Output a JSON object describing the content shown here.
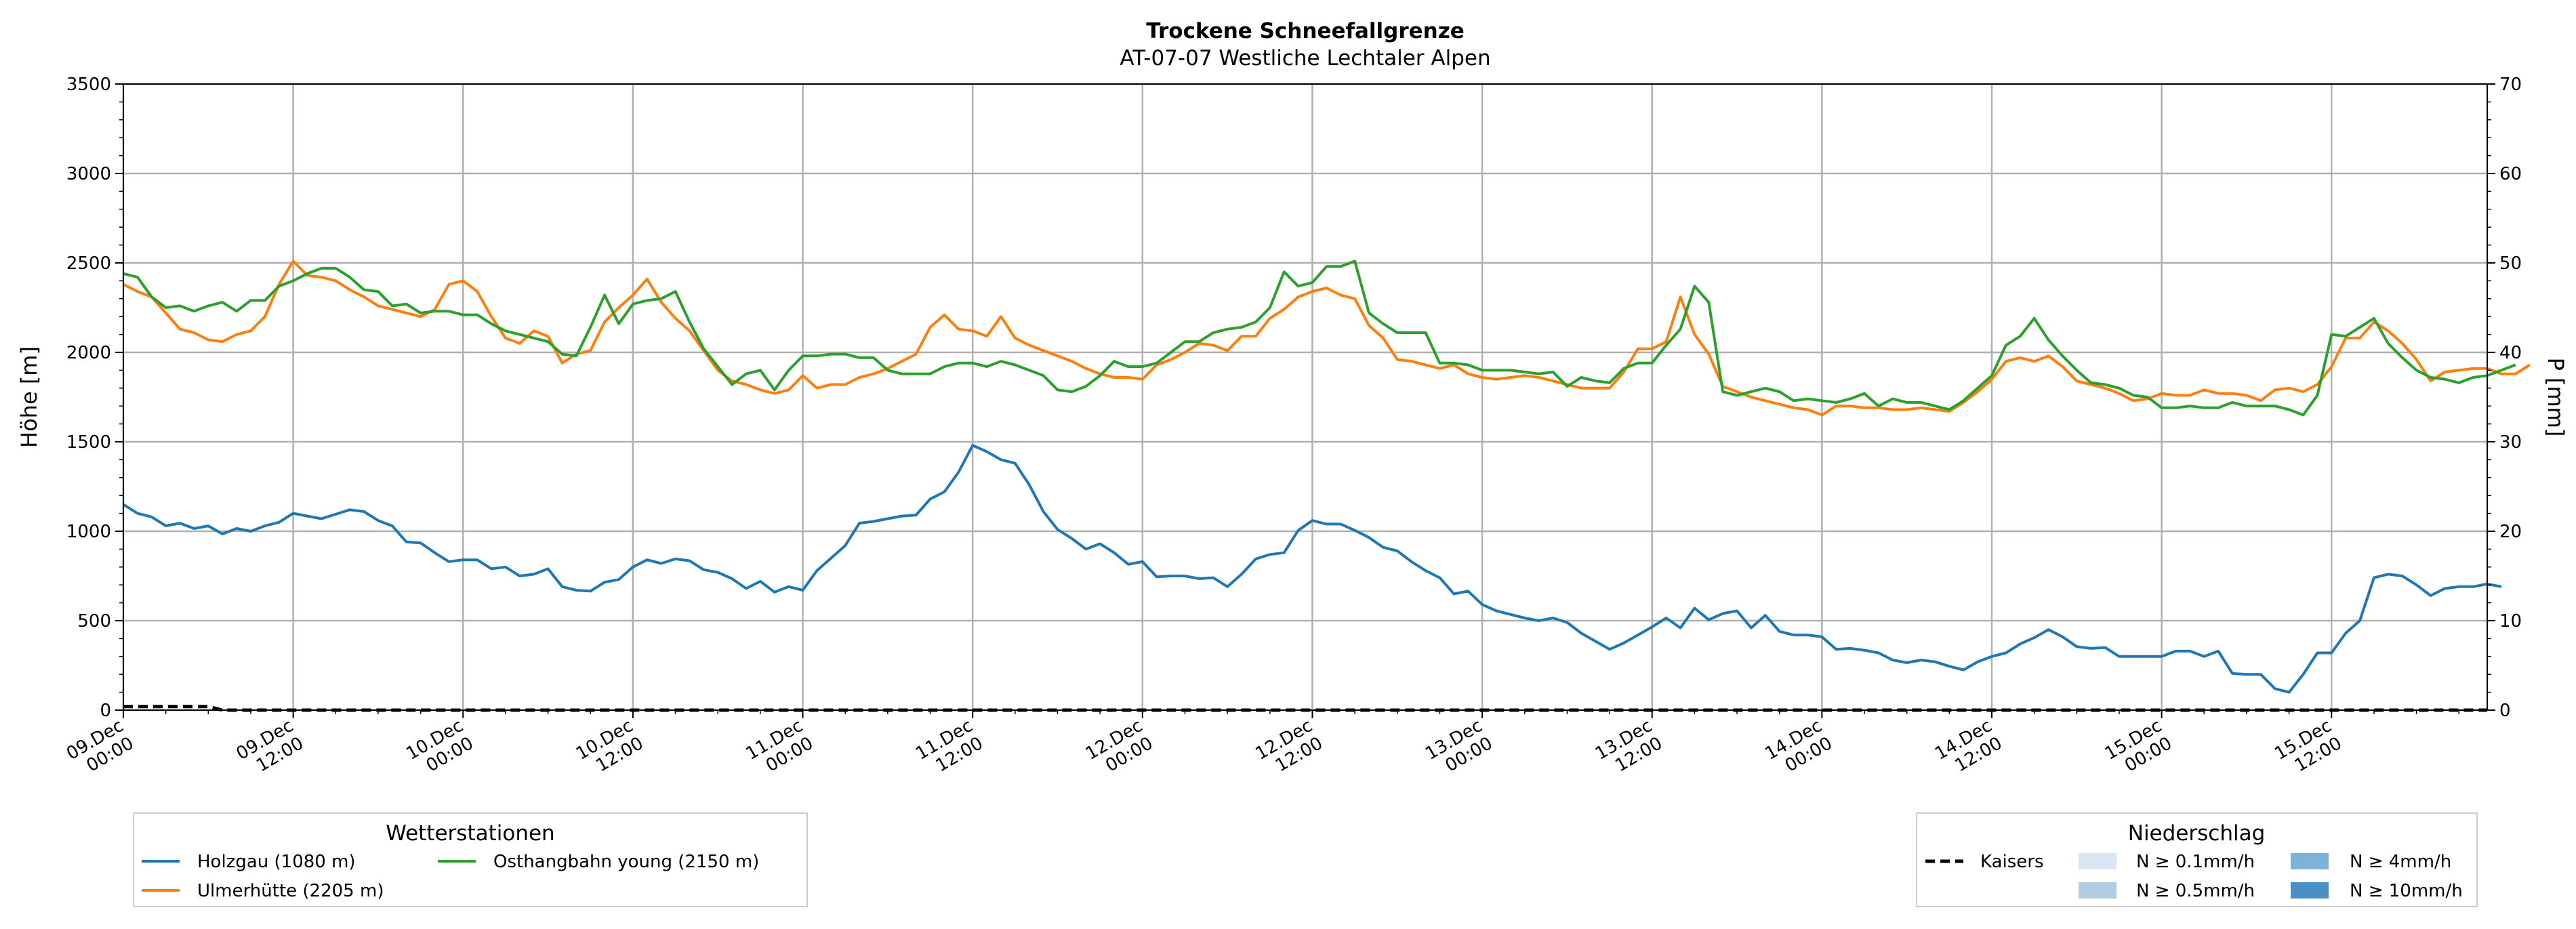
{
  "chart_data": {
    "type": "line",
    "title": "Trockene Schneefallgrenze",
    "subtitle": "AT-07-07 Westliche Lechtaler Alpen",
    "ylabel": "Höhe [m]",
    "ylabel_right": "P [mm]",
    "ylim": [
      0,
      3500
    ],
    "ylim_right": [
      0,
      70
    ],
    "yticks": [
      "0",
      "500",
      "1000",
      "1500",
      "2000",
      "2500",
      "3000",
      "3500"
    ],
    "yticks_right": [
      "0",
      "10",
      "20",
      "30",
      "40",
      "50",
      "60",
      "70"
    ],
    "x_hours_range": [
      0,
      167
    ],
    "x_hour_step": 1,
    "x_start": "09.Dec 00:00",
    "xticks": [
      [
        "09.Dec",
        "00:00"
      ],
      [
        "09.Dec",
        "12:00"
      ],
      [
        "10.Dec",
        "00:00"
      ],
      [
        "10.Dec",
        "12:00"
      ],
      [
        "11.Dec",
        "00:00"
      ],
      [
        "11.Dec",
        "12:00"
      ],
      [
        "12.Dec",
        "00:00"
      ],
      [
        "12.Dec",
        "12:00"
      ],
      [
        "13.Dec",
        "00:00"
      ],
      [
        "13.Dec",
        "12:00"
      ],
      [
        "14.Dec",
        "00:00"
      ],
      [
        "14.Dec",
        "12:00"
      ],
      [
        "15.Dec",
        "00:00"
      ],
      [
        "15.Dec",
        "12:00"
      ]
    ],
    "grid": true,
    "series": [
      {
        "name": "Holzgau (1080 m)",
        "color": "#1f77b4",
        "values": [
          1150,
          1100,
          1080,
          1030,
          1045,
          1015,
          1030,
          985,
          1015,
          1000,
          1030,
          1050,
          1100,
          1085,
          1070,
          1095,
          1120,
          1110,
          1060,
          1030,
          940,
          935,
          880,
          830,
          840,
          840,
          790,
          800,
          750,
          760,
          790,
          690,
          670,
          665,
          715,
          730,
          800,
          840,
          820,
          845,
          835,
          785,
          770,
          735,
          680,
          720,
          660,
          690,
          670,
          780,
          850,
          920,
          1045,
          1055,
          1070,
          1085,
          1090,
          1180,
          1220,
          1330,
          1480,
          1445,
          1400,
          1380,
          1260,
          1110,
          1010,
          960,
          900,
          930,
          880,
          815,
          830,
          745,
          750,
          750,
          735,
          740,
          690,
          760,
          845,
          870,
          880,
          1005,
          1060,
          1040,
          1040,
          1005,
          965,
          910,
          890,
          830,
          780,
          740,
          650,
          665,
          590,
          555,
          535,
          515,
          500,
          515,
          490,
          430,
          385,
          340,
          375,
          420,
          465,
          515,
          460,
          570,
          505,
          540,
          555,
          460,
          530,
          440,
          420,
          420,
          410,
          340,
          345,
          335,
          320,
          280,
          265,
          280,
          270,
          245,
          225,
          270,
          300,
          320,
          370,
          405,
          450,
          410,
          355,
          345,
          350,
          300,
          300,
          300,
          300,
          330,
          330,
          300,
          330,
          205,
          200,
          200,
          120,
          100,
          200,
          320,
          320,
          430,
          500,
          740,
          760,
          750,
          700,
          640,
          680,
          690,
          690,
          705,
          690
        ]
      },
      {
        "name": "Ulmerhütte (2205 m)",
        "color": "#ff7f0e",
        "values": [
          2380,
          2340,
          2310,
          2220,
          2130,
          2110,
          2070,
          2060,
          2100,
          2120,
          2200,
          2380,
          2510,
          2430,
          2420,
          2400,
          2350,
          2310,
          2260,
          2240,
          2220,
          2200,
          2240,
          2380,
          2400,
          2340,
          2200,
          2080,
          2050,
          2120,
          2090,
          1940,
          1990,
          2010,
          2170,
          2250,
          2320,
          2410,
          2280,
          2190,
          2120,
          2010,
          1900,
          1840,
          1820,
          1790,
          1770,
          1790,
          1870,
          1800,
          1820,
          1820,
          1860,
          1880,
          1910,
          1950,
          1990,
          2140,
          2210,
          2130,
          2120,
          2090,
          2200,
          2080,
          2040,
          2010,
          1980,
          1950,
          1910,
          1880,
          1860,
          1860,
          1850,
          1930,
          1960,
          2000,
          2050,
          2040,
          2010,
          2090,
          2090,
          2190,
          2240,
          2310,
          2340,
          2360,
          2320,
          2300,
          2150,
          2080,
          1960,
          1950,
          1930,
          1910,
          1930,
          1880,
          1860,
          1850,
          1860,
          1870,
          1860,
          1840,
          1820,
          1800,
          1800,
          1800,
          1890,
          2020,
          2020,
          2060,
          2310,
          2100,
          1990,
          1810,
          1780,
          1750,
          1730,
          1710,
          1690,
          1680,
          1650,
          1700,
          1700,
          1690,
          1690,
          1680,
          1680,
          1690,
          1680,
          1670,
          1720,
          1780,
          1850,
          1950,
          1970,
          1950,
          1980,
          1920,
          1840,
          1820,
          1800,
          1770,
          1730,
          1740,
          1770,
          1760,
          1760,
          1790,
          1770,
          1770,
          1760,
          1730,
          1790,
          1800,
          1780,
          1820,
          1920,
          2080,
          2080,
          2170,
          2120,
          2050,
          1960,
          1840,
          1890,
          1900,
          1910,
          1910,
          1880,
          1880,
          1930
        ]
      },
      {
        "name": "Osthangbahn young (2150 m)",
        "color": "#2ca02c",
        "values": [
          2440,
          2420,
          2310,
          2250,
          2260,
          2230,
          2260,
          2280,
          2230,
          2290,
          2290,
          2370,
          2400,
          2440,
          2470,
          2470,
          2420,
          2350,
          2340,
          2260,
          2270,
          2220,
          2230,
          2230,
          2210,
          2210,
          2160,
          2120,
          2100,
          2080,
          2060,
          1990,
          1980,
          2140,
          2320,
          2160,
          2270,
          2290,
          2300,
          2340,
          2170,
          2020,
          1920,
          1820,
          1880,
          1900,
          1790,
          1900,
          1980,
          1980,
          1990,
          1990,
          1970,
          1970,
          1900,
          1880,
          1880,
          1880,
          1920,
          1940,
          1940,
          1920,
          1950,
          1930,
          1900,
          1870,
          1790,
          1780,
          1810,
          1870,
          1950,
          1920,
          1920,
          1940,
          2000,
          2060,
          2060,
          2110,
          2130,
          2140,
          2170,
          2250,
          2450,
          2370,
          2390,
          2480,
          2480,
          2510,
          2220,
          2160,
          2110,
          2110,
          2110,
          1940,
          1940,
          1930,
          1900,
          1900,
          1900,
          1890,
          1880,
          1890,
          1810,
          1860,
          1840,
          1830,
          1910,
          1940,
          1940,
          2040,
          2130,
          2370,
          2280,
          1780,
          1760,
          1780,
          1800,
          1780,
          1730,
          1740,
          1730,
          1720,
          1740,
          1770,
          1700,
          1740,
          1720,
          1720,
          1700,
          1680,
          1730,
          1800,
          1870,
          2040,
          2090,
          2190,
          2070,
          1980,
          1900,
          1830,
          1820,
          1800,
          1760,
          1750,
          1690,
          1690,
          1700,
          1690,
          1690,
          1720,
          1700,
          1700,
          1700,
          1680,
          1650,
          1760,
          2100,
          2090,
          2140,
          2190,
          2050,
          1970,
          1900,
          1860,
          1850,
          1830,
          1860,
          1870,
          1900,
          1930
        ]
      }
    ],
    "precip_series": [
      {
        "name": "Kaisers",
        "color": "#000000",
        "style": "dashed",
        "points": [
          [
            0,
            0.4
          ],
          [
            6,
            0.4
          ],
          [
            7,
            0
          ],
          [
            167,
            0
          ]
        ]
      }
    ],
    "legend_stations": {
      "title": "Wetterstationen",
      "entries": [
        "Holzgau (1080 m)",
        "Ulmerhütte (2205 m)",
        "Osthangbahn young (2150 m)"
      ]
    },
    "legend_precip": {
      "title": "Niederschlag",
      "line_entry": "Kaisers",
      "patch_entries": [
        {
          "label": "N ≥ 0.1mm/h",
          "color": "#d6e6f4"
        },
        {
          "label": "N ≥ 0.5mm/h",
          "color": "#b0cde5"
        },
        {
          "label": "N ≥ 4mm/h",
          "color": "#7fb2d9"
        },
        {
          "label": "N ≥ 10mm/h",
          "color": "#4a8fc4"
        }
      ]
    }
  }
}
